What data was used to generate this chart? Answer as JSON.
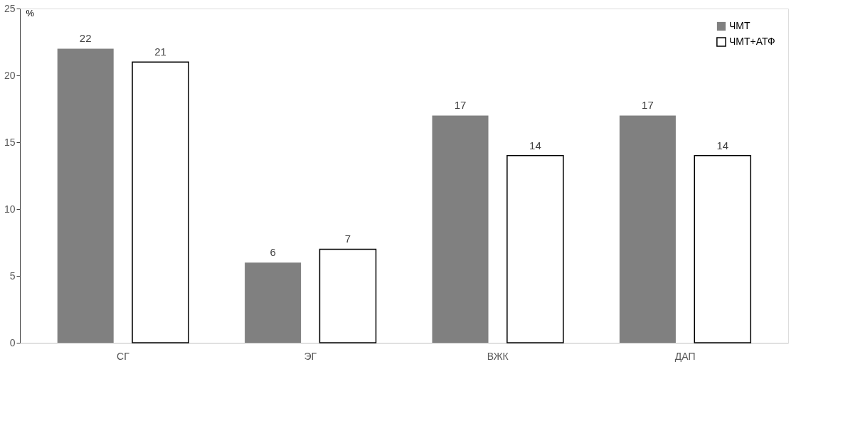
{
  "chart_data": {
    "type": "bar",
    "ylabel": "%",
    "categories": [
      "СГ",
      "ЭГ",
      "ВЖК",
      "ДАП"
    ],
    "series": [
      {
        "name": "ЧМТ",
        "color": "#808080",
        "values": [
          22,
          6,
          17,
          17
        ]
      },
      {
        "name": "ЧМТ+АТФ",
        "color": "#ffffff",
        "values": [
          21,
          7,
          14,
          14
        ]
      }
    ],
    "ylim": [
      0,
      25
    ],
    "yticks": [
      0,
      5,
      10,
      15,
      20,
      25
    ],
    "grid": false,
    "legend": "top right",
    "data_labels": true
  }
}
